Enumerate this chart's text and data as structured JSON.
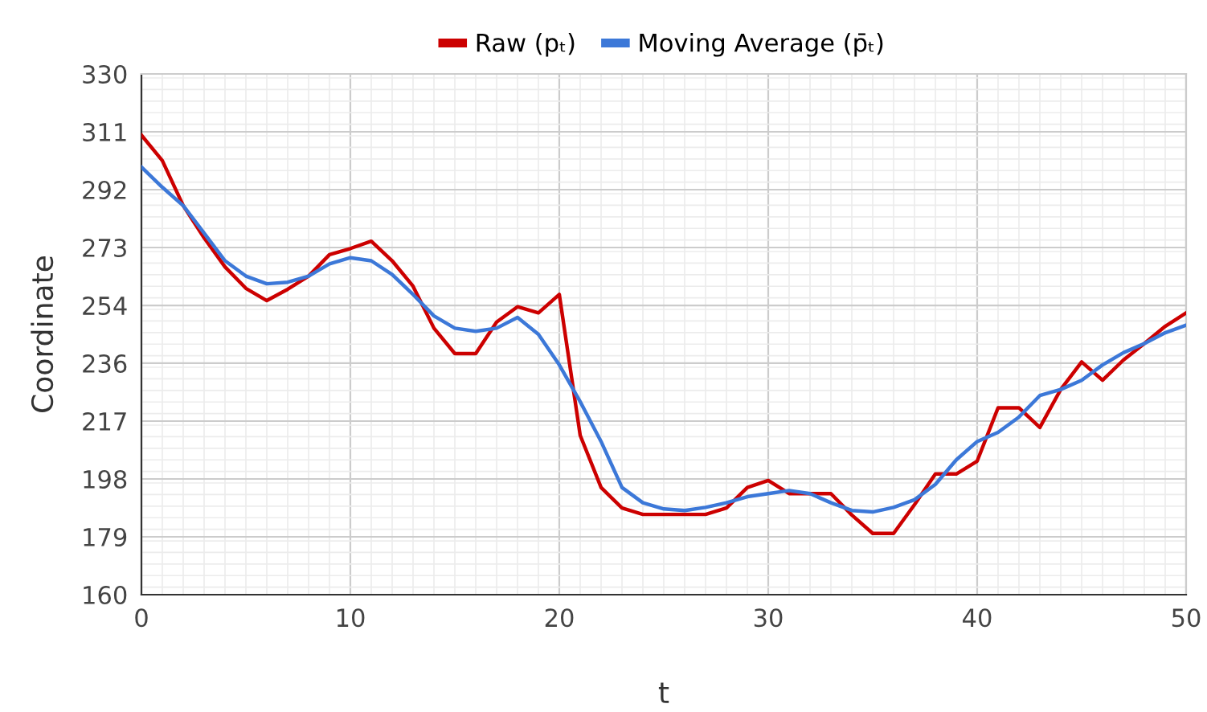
{
  "chart_data": {
    "type": "line",
    "xlabel": "t",
    "ylabel": "Coordinate",
    "x": [
      0,
      1,
      2,
      3,
      4,
      5,
      6,
      7,
      8,
      9,
      10,
      11,
      12,
      13,
      14,
      15,
      16,
      17,
      18,
      19,
      20,
      21,
      22,
      23,
      24,
      25,
      26,
      27,
      28,
      29,
      30,
      31,
      32,
      33,
      34,
      35,
      36,
      37,
      38,
      39,
      40,
      41,
      42,
      43,
      44,
      45,
      46,
      47,
      48,
      49,
      50
    ],
    "series": [
      {
        "name": "Raw (pₜ)",
        "color": "#cc0000",
        "values": [
          310,
          301.7,
          287,
          276.5,
          267,
          260,
          256,
          259.7,
          264,
          271,
          273,
          275.4,
          269,
          260.7,
          247,
          238.7,
          238.7,
          249,
          254,
          252,
          258,
          212,
          195,
          188.3,
          186.2,
          186.2,
          186.2,
          186.2,
          188.3,
          195,
          197.3,
          193,
          193,
          193,
          186,
          180,
          180,
          189.4,
          199.4,
          199.4,
          203.6,
          221,
          221,
          214.6,
          227,
          236,
          230,
          236.6,
          242,
          247.6,
          252
        ]
      },
      {
        "name": "Moving Average (p̄ₜ)",
        "color": "#3c78d8",
        "values": [
          299.6,
          293,
          287,
          278,
          269,
          264,
          261.5,
          262,
          264,
          268,
          270,
          269,
          264.5,
          258,
          251,
          247,
          246,
          247,
          250.5,
          245,
          235,
          223,
          210,
          195,
          190,
          188,
          187.5,
          188.5,
          190,
          192,
          193,
          194,
          193,
          190,
          187.5,
          187,
          188.5,
          191,
          196,
          204,
          210,
          213,
          218,
          225,
          227,
          230,
          235,
          239,
          242,
          245.5,
          248
        ]
      }
    ],
    "xlim": [
      0,
      50
    ],
    "xticks": [
      0,
      10,
      20,
      30,
      40,
      50
    ],
    "ylim": [
      160,
      330
    ],
    "yticks": [
      160,
      {
        "value": 178.89,
        "label": "179"
      },
      {
        "value": 197.78,
        "label": "198"
      },
      {
        "value": 216.67,
        "label": "217"
      },
      {
        "value": 235.56,
        "label": "236"
      },
      {
        "value": 254.44,
        "label": "254"
      },
      {
        "value": 273.33,
        "label": "273"
      },
      {
        "value": 292.22,
        "label": "292"
      },
      {
        "value": 311.11,
        "label": "311"
      },
      330
    ],
    "grid": true,
    "legend": "top",
    "marker": "none",
    "line_style": "solid"
  }
}
